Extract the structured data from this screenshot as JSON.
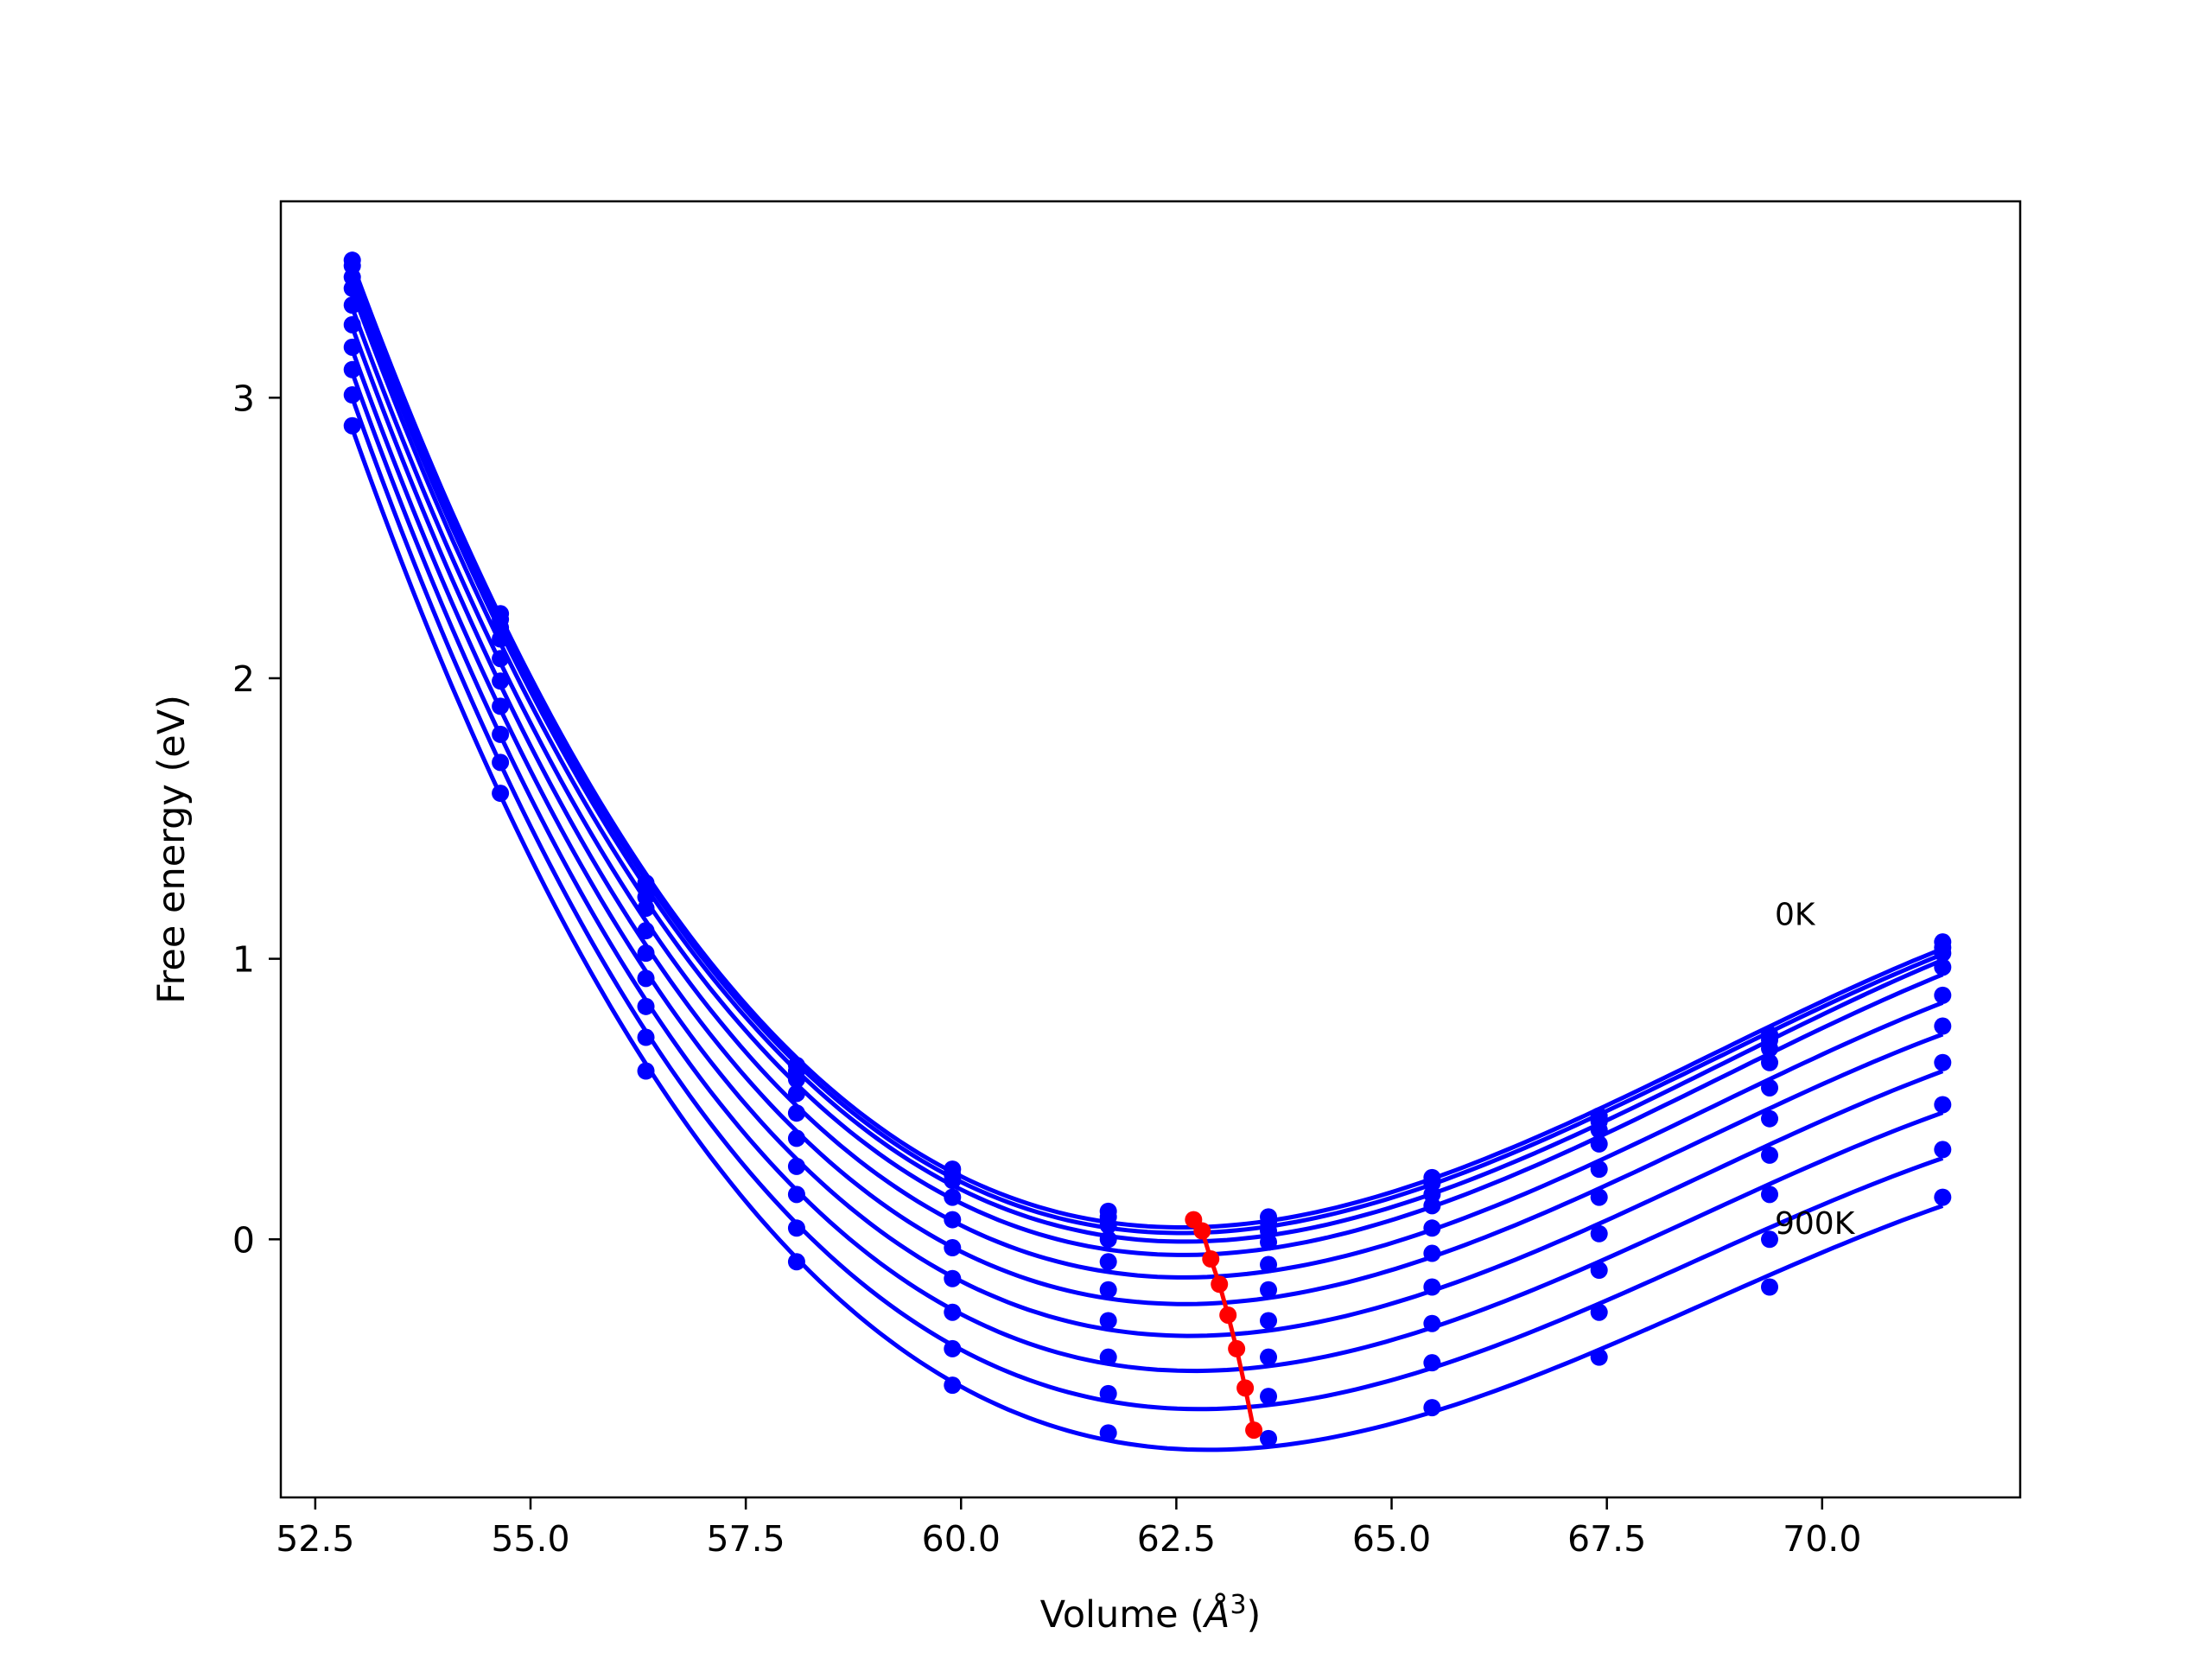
{
  "chart_data": {
    "type": "line",
    "xlabel": "Volume (Å³)",
    "xlabel_main": "Volume (",
    "xlabel_unit": "Å",
    "xlabel_sup": "3",
    "xlabel_close": ")",
    "ylabel": "Free energy (eV)",
    "xlim": [
      52.1,
      72.3
    ],
    "ylim": [
      -0.92,
      3.7
    ],
    "xticks": [
      "52.5",
      "55.0",
      "57.5",
      "60.0",
      "62.5",
      "65.0",
      "67.5",
      "70.0"
    ],
    "xtick_values": [
      52.5,
      55.0,
      57.5,
      60.0,
      62.5,
      65.0,
      67.5,
      70.0
    ],
    "yticks": [
      "0",
      "1",
      "2",
      "3"
    ],
    "ytick_values": [
      0,
      1,
      2,
      3
    ],
    "volumes": [
      52.93,
      54.65,
      56.34,
      58.09,
      59.9,
      61.71,
      63.57,
      65.47,
      67.41,
      69.39,
      71.4
    ],
    "series": [
      {
        "values": [
          3.49,
          2.23,
          1.27,
          0.62,
          0.25,
          0.1,
          0.08,
          0.22,
          0.44,
          0.73,
          1.06
        ]
      },
      {
        "values": [
          3.47,
          2.21,
          1.25,
          0.6,
          0.23,
          0.08,
          0.06,
          0.2,
          0.42,
          0.71,
          1.04
        ]
      },
      {
        "values": [
          3.43,
          2.18,
          1.22,
          0.57,
          0.21,
          0.05,
          0.03,
          0.16,
          0.39,
          0.68,
          1.02
        ]
      },
      {
        "values": [
          3.39,
          2.14,
          1.18,
          0.52,
          0.15,
          0.0,
          -0.01,
          0.12,
          0.34,
          0.63,
          0.97
        ]
      },
      {
        "values": [
          3.33,
          2.07,
          1.1,
          0.45,
          0.07,
          -0.08,
          -0.09,
          0.04,
          0.25,
          0.54,
          0.87
        ]
      },
      {
        "values": [
          3.26,
          1.99,
          1.02,
          0.36,
          -0.03,
          -0.18,
          -0.18,
          -0.05,
          0.15,
          0.43,
          0.76
        ]
      },
      {
        "values": [
          3.18,
          1.9,
          0.93,
          0.26,
          -0.14,
          -0.29,
          -0.29,
          -0.17,
          0.02,
          0.3,
          0.63
        ]
      },
      {
        "values": [
          3.1,
          1.8,
          0.83,
          0.16,
          -0.26,
          -0.42,
          -0.42,
          -0.3,
          -0.11,
          0.16,
          0.48
        ]
      },
      {
        "values": [
          3.01,
          1.7,
          0.72,
          0.04,
          -0.39,
          -0.55,
          -0.56,
          -0.44,
          -0.26,
          0.0,
          0.32
        ]
      },
      {
        "values": [
          2.9,
          1.59,
          0.6,
          -0.08,
          -0.52,
          -0.69,
          -0.71,
          -0.6,
          -0.42,
          -0.17,
          0.15
        ]
      }
    ],
    "minima_path": {
      "x": [
        62.7,
        62.8,
        62.9,
        63.0,
        63.1,
        63.2,
        63.3,
        63.4
      ],
      "y": [
        0.07,
        0.03,
        -0.07,
        -0.16,
        -0.27,
        -0.39,
        -0.53,
        -0.68
      ]
    },
    "annotations": [
      {
        "text": "0K",
        "x": 69.45,
        "y": 1.12
      },
      {
        "text": "900K",
        "x": 69.45,
        "y": 0.02
      }
    ],
    "colors": {
      "series": "#0000ff",
      "minima": "#ff0000",
      "axes": "#000000",
      "background": "#ffffff"
    },
    "grid": false,
    "legend": "none"
  }
}
